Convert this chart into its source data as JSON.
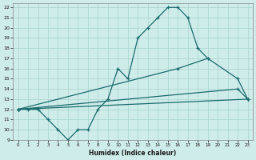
{
  "xlabel": "Humidex (Indice chaleur)",
  "background_color": "#ceecea",
  "grid_color": "#aad4d0",
  "line_color": "#1a6b6b",
  "xlim": [
    -0.5,
    23.5
  ],
  "ylim": [
    9,
    22.4
  ],
  "xticks": [
    0,
    1,
    2,
    3,
    4,
    5,
    6,
    7,
    8,
    9,
    10,
    11,
    12,
    13,
    14,
    15,
    16,
    17,
    18,
    19,
    20,
    21,
    22,
    23
  ],
  "yticks": [
    9,
    10,
    11,
    12,
    13,
    14,
    15,
    16,
    17,
    18,
    19,
    20,
    21,
    22
  ],
  "line1_x": [
    0,
    1,
    2,
    3,
    4,
    5,
    6,
    7,
    8,
    9,
    10,
    11,
    12,
    13,
    14,
    15,
    16,
    17,
    18,
    19
  ],
  "line1_y": [
    12,
    12,
    12,
    11,
    10,
    9,
    10,
    10,
    12,
    13,
    16,
    15,
    19,
    20,
    21,
    22,
    22,
    21,
    18,
    17
  ],
  "line2_x": [
    0,
    22,
    23
  ],
  "line2_y": [
    12,
    14,
    13
  ],
  "line3_x": [
    0,
    16,
    19,
    22,
    23
  ],
  "line3_y": [
    12,
    16,
    17,
    15,
    13
  ],
  "line4_x": [
    0,
    23
  ],
  "line4_y": [
    12,
    13
  ]
}
